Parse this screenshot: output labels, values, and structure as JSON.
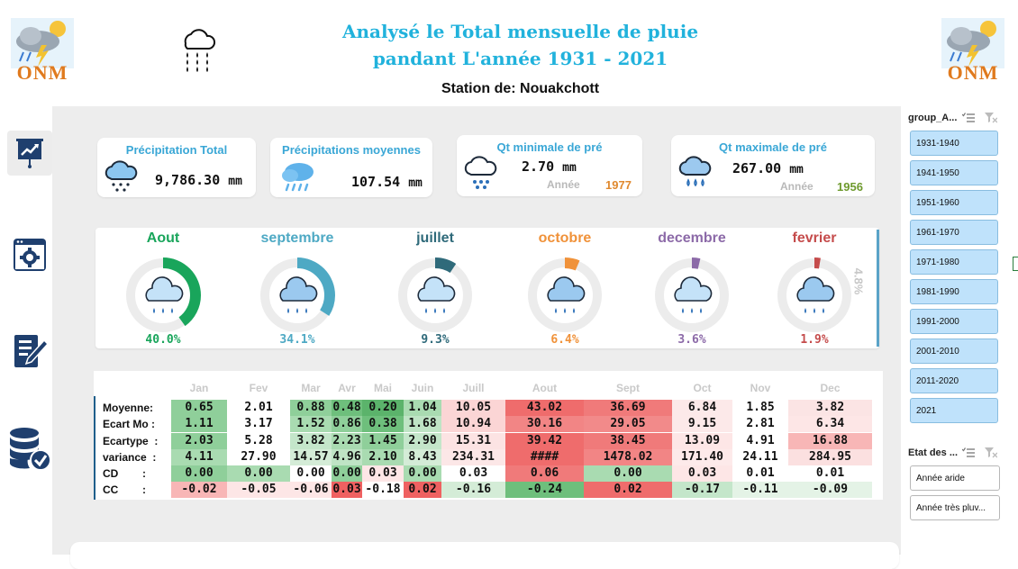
{
  "header": {
    "title_line1": "Analysé le Total mensuelle de pluie",
    "title_line2": "pandant L'année 1931 - 2021",
    "station": "Station de: Nouakchott",
    "logo_text": "ONM"
  },
  "nav": [
    {
      "icon": "presentation-chart-icon",
      "active": true
    },
    {
      "icon": "settings-gear-icon",
      "active": false
    },
    {
      "icon": "edit-document-icon",
      "active": false
    },
    {
      "icon": "database-check-icon",
      "active": false
    }
  ],
  "kpis": {
    "total": {
      "title": "Précipitation Total",
      "value": "9,786.30",
      "unit": "mm"
    },
    "mean": {
      "title": "Précipitations moyennes",
      "value": "107.54",
      "unit": "mm"
    },
    "min": {
      "title": "Qt minimale de pré",
      "value": "2.70",
      "unit": "mm",
      "year_label": "Année",
      "year": "1977"
    },
    "max": {
      "title": "Qt maximale de pré",
      "value": "267.00",
      "unit": "mm",
      "year_label": "Année",
      "year": "1956"
    }
  },
  "months": [
    {
      "name": "Aout",
      "pct": "40.0%",
      "fraction": 0.4,
      "color": "#19a55b"
    },
    {
      "name": "septembre",
      "pct": "34.1%",
      "fraction": 0.341,
      "color": "#4ea9c4"
    },
    {
      "name": "juillet",
      "pct": "9.3%",
      "fraction": 0.093,
      "color": "#2f6a7a"
    },
    {
      "name": "octobre",
      "pct": "6.4%",
      "fraction": 0.064,
      "color": "#f0923a"
    },
    {
      "name": "decembre",
      "pct": "3.6%",
      "fraction": 0.036,
      "color": "#8c6aa8"
    },
    {
      "name": "fevrier",
      "pct": "1.9%",
      "fraction": 0.019,
      "color": "#c54c4c"
    }
  ],
  "side_pct": "4.8%",
  "table": {
    "columns": [
      "Jan",
      "Fev",
      "Mar",
      "Avr",
      "Mai",
      "Juin",
      "Juill",
      "Aout",
      "Sept",
      "Oct",
      "Nov",
      "Dec"
    ],
    "rows": [
      {
        "label": "Moyenne:",
        "values": [
          "0.65",
          "2.01",
          "0.88",
          "0.48",
          "0.20",
          "1.04",
          "10.05",
          "43.02",
          "36.69",
          "6.84",
          "1.85",
          "3.82"
        ]
      },
      {
        "label": "Ecart Mo :",
        "values": [
          "1.11",
          "3.17",
          "1.52",
          "0.86",
          "0.38",
          "1.68",
          "10.94",
          "30.16",
          "29.05",
          "9.15",
          "2.81",
          "6.34"
        ]
      },
      {
        "label": "Ecartype  :",
        "values": [
          "2.03",
          "5.28",
          "3.82",
          "2.23",
          "1.45",
          "2.90",
          "15.31",
          "39.42",
          "38.45",
          "13.09",
          "4.91",
          "16.88"
        ]
      },
      {
        "label": "variance  :",
        "values": [
          "4.11",
          "27.90",
          "14.57",
          "4.96",
          "2.10",
          "8.43",
          "234.31",
          "####",
          "1478.02",
          "171.40",
          "24.11",
          "284.95"
        ]
      },
      {
        "label": "CD        :",
        "values": [
          "0.00",
          "0.00",
          "0.00",
          "0.00",
          "0.03",
          "0.00",
          "0.03",
          "0.06",
          "0.00",
          "0.03",
          "0.01",
          "0.01"
        ]
      },
      {
        "label": "CC        :",
        "values": [
          "-0.02",
          "-0.05",
          "-0.06",
          "0.03",
          "-0.18",
          "0.02",
          "-0.16",
          "-0.24",
          "0.02",
          "-0.17",
          "-0.11",
          "-0.09"
        ]
      }
    ],
    "colors": [
      [
        "#8fcf9a",
        "#ffffff",
        "#8fcf9a",
        "#6ebf7c",
        "#5bb36b",
        "#a9dbb1",
        "#fbd5d5",
        "#ef6c6c",
        "#f07a7a",
        "#fce9e9",
        "#ffffff",
        "#fbe4e4"
      ],
      [
        "#8fcf9a",
        "#ffffff",
        "#a9dbb1",
        "#8fcf9a",
        "#6ebf7c",
        "#bfe4c5",
        "#fbd5d5",
        "#f28585",
        "#f28a8a",
        "#fce9e9",
        "#ffffff",
        "#fde6e6"
      ],
      [
        "#8fcf9a",
        "#ffffff",
        "#c4e6ca",
        "#a9dbb1",
        "#8fcf9a",
        "#c4e6ca",
        "#fce3e3",
        "#ef6c6c",
        "#f07a7a",
        "#fde6e6",
        "#ffffff",
        "#f8b6b6"
      ],
      [
        "#a9dbb1",
        "#ffffff",
        "#d4ecd7",
        "#bfe4c5",
        "#a9dbb1",
        "#d4ecd7",
        "#fce7e7",
        "#ef6c6c",
        "#f28585",
        "#fdeaea",
        "#ffffff",
        "#fbe0e0"
      ],
      [
        "#8fcf9a",
        "#a9dbb1",
        "#ffffff",
        "#8fcf9a",
        "#fde6e6",
        "#a9dbb1",
        "#ffffff",
        "#f07a7a",
        "#a9dbb1",
        "#fde6e6",
        "#ffffff",
        "#ffffff"
      ],
      [
        "#f8b6b6",
        "#fde6e6",
        "#fde6e6",
        "#ef6161",
        "#ffffff",
        "#ef6161",
        "#d4ecd7",
        "#6ebf7c",
        "#ef6c6c",
        "#c4e6ca",
        "#e4f3e6",
        "#e4f3e6"
      ]
    ]
  },
  "slicers": {
    "group": {
      "title": "group_A...",
      "items": [
        "1931-1940",
        "1941-1950",
        "1951-1960",
        "1961-1970",
        "1971-1980",
        "1981-1990",
        "1991-2000",
        "2001-2010",
        "2011-2020",
        "2021"
      ]
    },
    "etat": {
      "title": "Etat des ...",
      "items": [
        "Année aride",
        "Année très pluv..."
      ]
    }
  }
}
